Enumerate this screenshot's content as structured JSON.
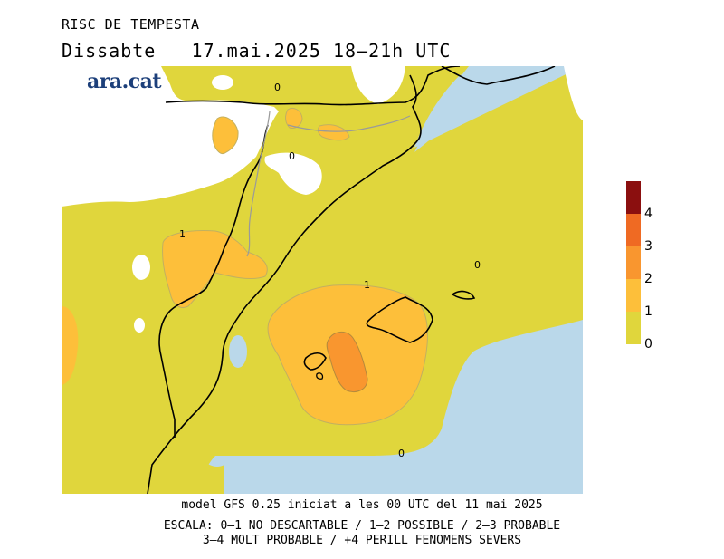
{
  "title": "RISC DE TEMPESTA",
  "subtitle": {
    "day": "Dissabte",
    "date": "17.mai.2025",
    "time": "18–21h UTC"
  },
  "logo": "ara.cat",
  "map_labels": {
    "contour_0_north": "0",
    "contour_0_center": "0",
    "contour_1_west": "1",
    "contour_0_east": "0",
    "contour_1_center": "1",
    "contour_0_south": "0"
  },
  "footer": {
    "model": "model GFS 0.25 iniciat a les 00 UTC del 11 mai 2025",
    "scale_line1": "ESCALA: 0–1 NO DESCARTABLE / 1–2 POSSIBLE / 2–3 PROBABLE",
    "scale_line2": "3–4 MOLT PROBABLE / +4 PERILL FENOMENS SEVERS"
  },
  "legend": {
    "labels": [
      "4",
      "3",
      "2",
      "1",
      "0"
    ],
    "colors": {
      "level_0_1": "#e0d63c",
      "level_1_2": "#fdbf3a",
      "level_2_3": "#f9962f",
      "level_3_4": "#ef6a23",
      "level_4_plus": "#8b0f0f",
      "sea": "#bad8ea"
    }
  }
}
